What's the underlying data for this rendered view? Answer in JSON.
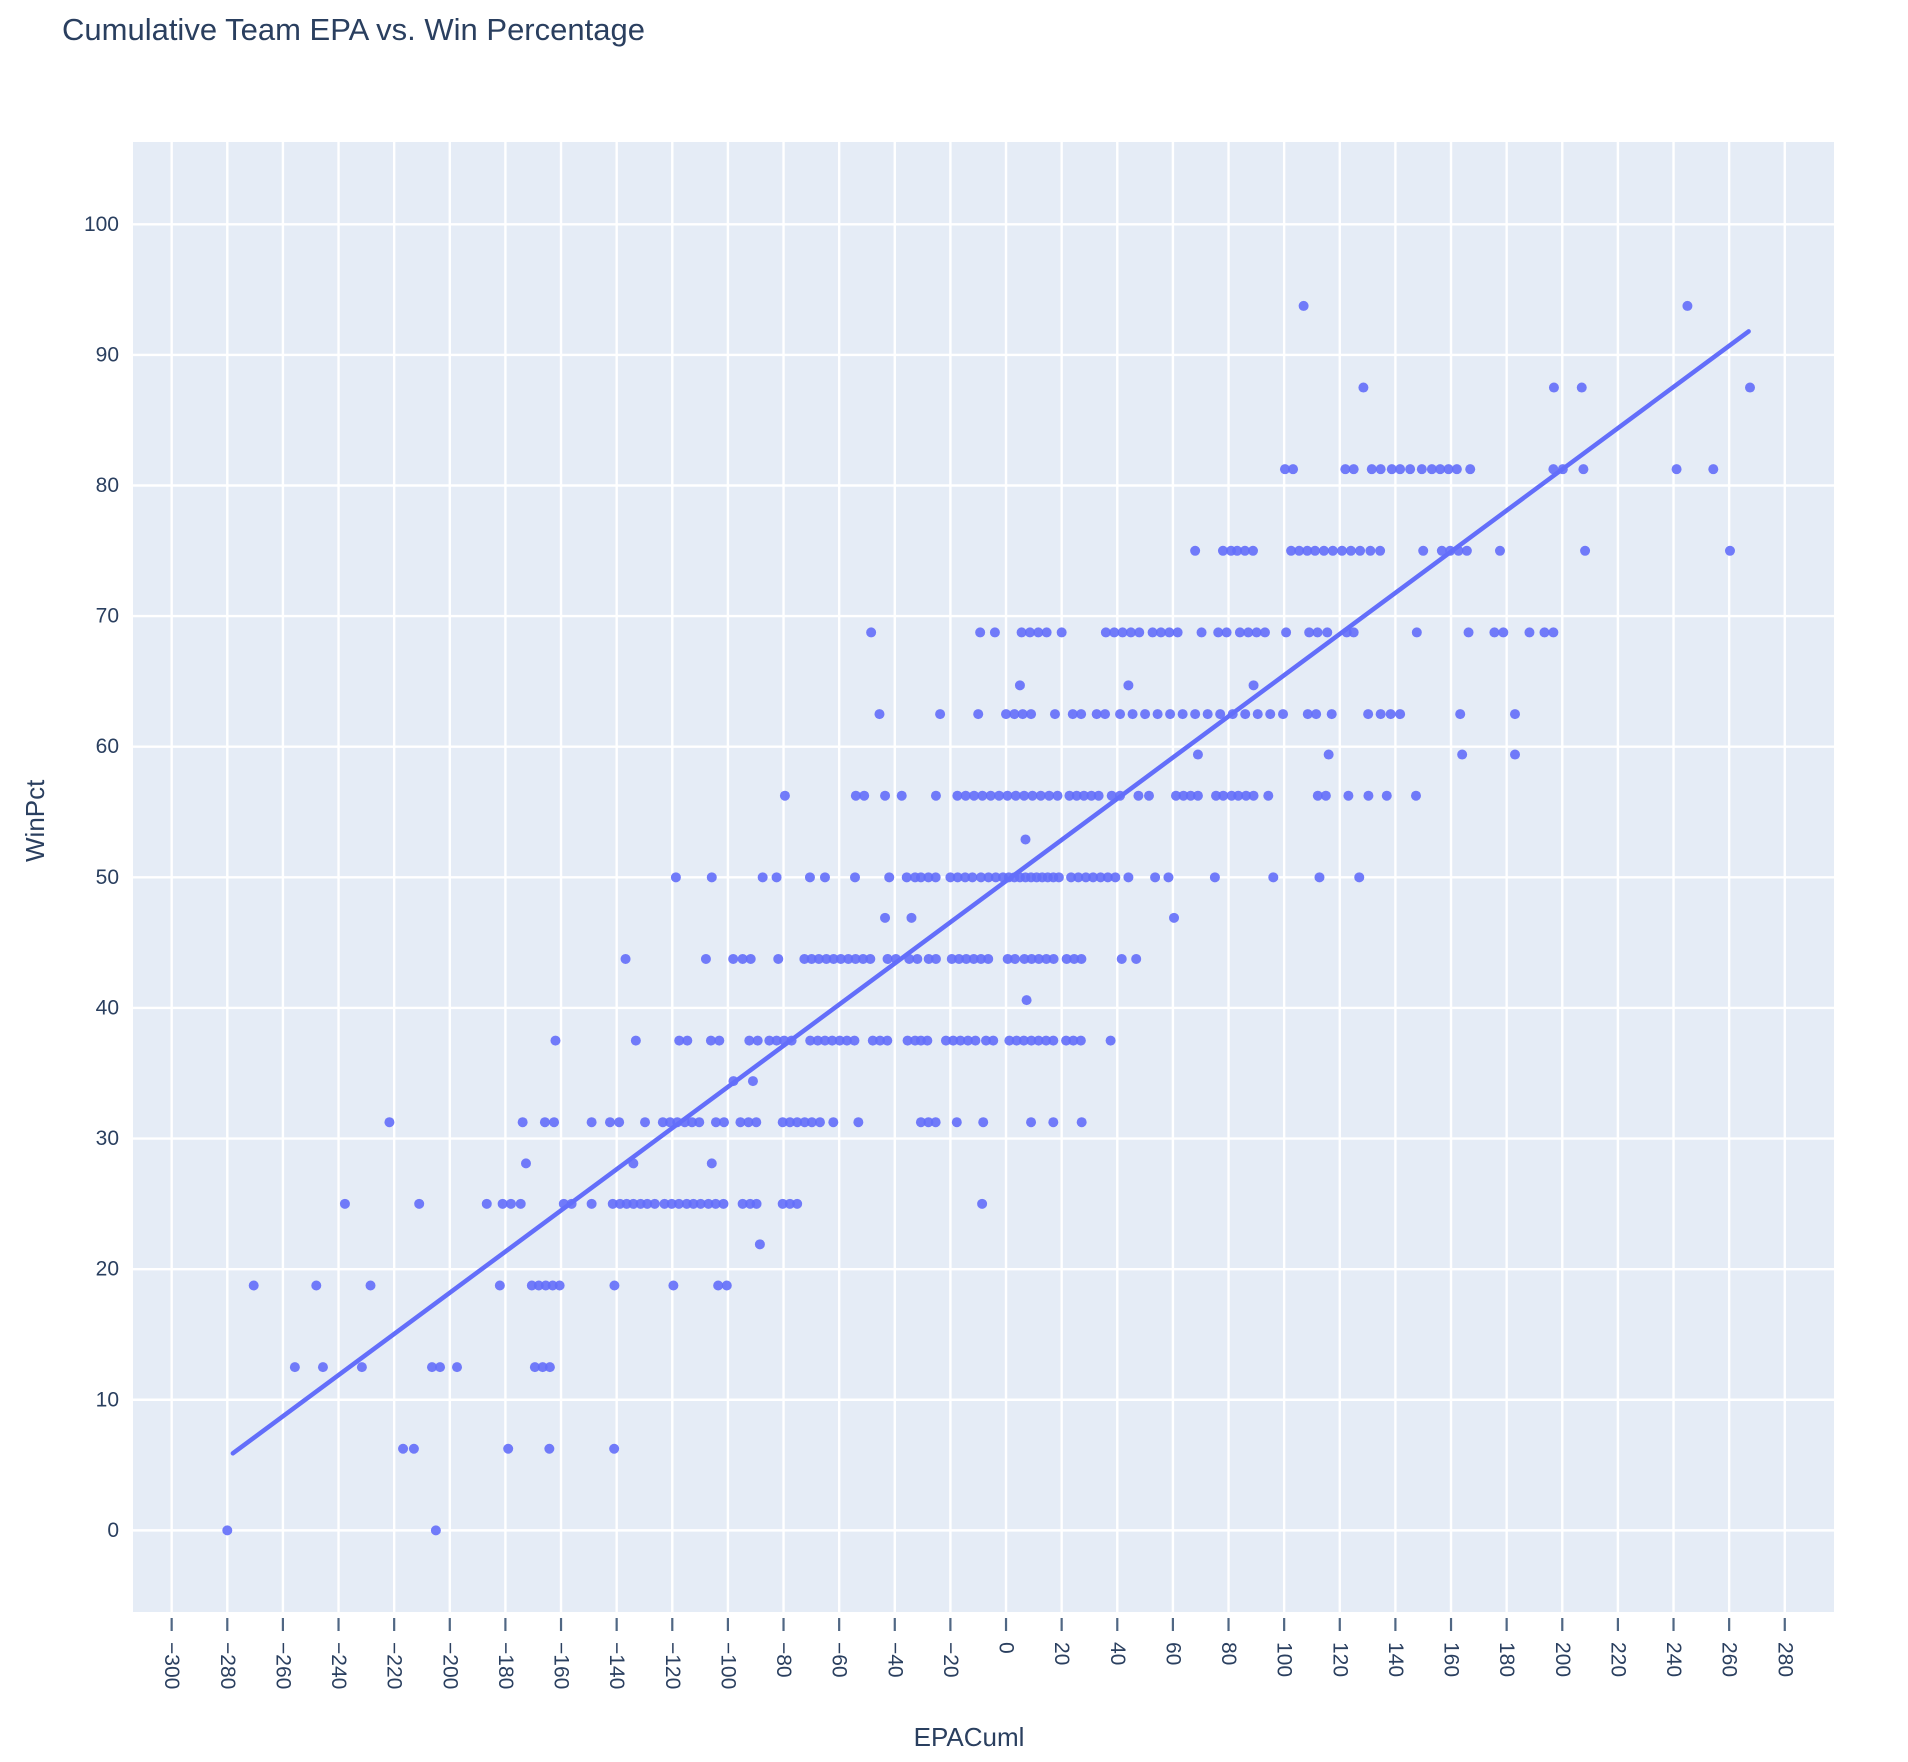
{
  "page": {
    "title": "Cumulative Team EPA vs. Win Percentage"
  },
  "chart_data": {
    "type": "scatter",
    "title": "Cumulative Team EPA vs. Win Percentage",
    "xlabel": "EPACuml",
    "ylabel": "WinPct",
    "xlim": [
      -313.9,
      297.7
    ],
    "ylim": [
      -6.25,
      106.3
    ],
    "x_ticks": [
      -300,
      -280,
      -260,
      -240,
      -220,
      -200,
      -180,
      -160,
      -140,
      -120,
      -100,
      -80,
      -60,
      -40,
      -20,
      0,
      20,
      40,
      60,
      80,
      100,
      120,
      140,
      160,
      180,
      200,
      220,
      240,
      260,
      280
    ],
    "y_ticks": [
      0,
      10,
      20,
      30,
      40,
      50,
      60,
      70,
      80,
      90,
      100
    ],
    "grid": true,
    "legend_position": "none",
    "marker_color": "#636EFA",
    "trend_color": "#636EFA",
    "plot_bg": "#E5ECF6",
    "grid_color": "#FFFFFF",
    "text_color": "#2A3F5F",
    "trendline": {
      "type": "ols",
      "x": [
        -278,
        267
      ],
      "y": [
        5.9,
        91.8
      ]
    },
    "points": [
      [
        -280,
        0
      ],
      [
        -205,
        0
      ],
      [
        -216.8,
        6.25
      ],
      [
        -212.9,
        6.25
      ],
      [
        -179,
        6.25
      ],
      [
        -164.2,
        6.25
      ],
      [
        -140.9,
        6.25
      ],
      [
        -255.7,
        12.5
      ],
      [
        -245.6,
        12.5
      ],
      [
        -231.6,
        12.5
      ],
      [
        -206.4,
        12.5
      ],
      [
        -203.5,
        12.5
      ],
      [
        -197.4,
        12.5
      ],
      [
        -169.4,
        12.5
      ],
      [
        -166.6,
        12.5
      ],
      [
        -164,
        12.5
      ],
      [
        -270.5,
        18.75
      ],
      [
        -248,
        18.75
      ],
      [
        -228.5,
        18.75
      ],
      [
        -182,
        18.75
      ],
      [
        -170.5,
        18.75
      ],
      [
        -168,
        18.75
      ],
      [
        -165.5,
        18.75
      ],
      [
        -163,
        18.75
      ],
      [
        -160.5,
        18.75
      ],
      [
        -140.8,
        18.75
      ],
      [
        -119.6,
        18.75
      ],
      [
        -103.5,
        18.75
      ],
      [
        -100.4,
        18.75
      ],
      [
        -88.5,
        21.9
      ],
      [
        -237.7,
        25
      ],
      [
        -211,
        25
      ],
      [
        -186.7,
        25
      ],
      [
        -181,
        25
      ],
      [
        -178,
        25
      ],
      [
        -174.5,
        25
      ],
      [
        -159,
        25
      ],
      [
        -156.2,
        25
      ],
      [
        -149,
        25
      ],
      [
        -141.4,
        25
      ],
      [
        -138.8,
        25
      ],
      [
        -136.4,
        25
      ],
      [
        -134,
        25
      ],
      [
        -131.4,
        25
      ],
      [
        -129,
        25
      ],
      [
        -126.3,
        25
      ],
      [
        -122.8,
        25
      ],
      [
        -120.2,
        25
      ],
      [
        -117.6,
        25
      ],
      [
        -114.8,
        25
      ],
      [
        -112.4,
        25
      ],
      [
        -109.8,
        25
      ],
      [
        -107,
        25
      ],
      [
        -104.4,
        25
      ],
      [
        -101.6,
        25
      ],
      [
        -94.7,
        25
      ],
      [
        -92,
        25
      ],
      [
        -89.7,
        25
      ],
      [
        -80.3,
        25
      ],
      [
        -77.7,
        25
      ],
      [
        -75.1,
        25
      ],
      [
        -8.6,
        25
      ],
      [
        -172.6,
        28.1
      ],
      [
        -134,
        28.1
      ],
      [
        -105.8,
        28.1
      ],
      [
        -221.7,
        31.25
      ],
      [
        -173.8,
        31.25
      ],
      [
        -165.8,
        31.25
      ],
      [
        -162.5,
        31.25
      ],
      [
        -149,
        31.25
      ],
      [
        -142.4,
        31.25
      ],
      [
        -139.1,
        31.25
      ],
      [
        -129.8,
        31.25
      ],
      [
        -123.4,
        31.25
      ],
      [
        -120.8,
        31.25
      ],
      [
        -118.2,
        31.25
      ],
      [
        -115.5,
        31.25
      ],
      [
        -112.9,
        31.25
      ],
      [
        -110.3,
        31.25
      ],
      [
        -104.3,
        31.25
      ],
      [
        -101.4,
        31.25
      ],
      [
        -95.5,
        31.25
      ],
      [
        -92.6,
        31.25
      ],
      [
        -89.8,
        31.25
      ],
      [
        -80.3,
        31.25
      ],
      [
        -77.7,
        31.25
      ],
      [
        -75.1,
        31.25
      ],
      [
        -72.4,
        31.25
      ],
      [
        -69.8,
        31.25
      ],
      [
        -66.9,
        31.25
      ],
      [
        -62.1,
        31.25
      ],
      [
        -53.1,
        31.25
      ],
      [
        -30.6,
        31.25
      ],
      [
        -27.9,
        31.25
      ],
      [
        -25.3,
        31.25
      ],
      [
        -17.7,
        31.25
      ],
      [
        -8.2,
        31.25
      ],
      [
        9,
        31.25
      ],
      [
        17,
        31.25
      ],
      [
        27.2,
        31.25
      ],
      [
        -98,
        34.4
      ],
      [
        -91,
        34.4
      ],
      [
        -162,
        37.5
      ],
      [
        -133.1,
        37.5
      ],
      [
        -117.5,
        37.5
      ],
      [
        -114.6,
        37.5
      ],
      [
        -106.1,
        37.5
      ],
      [
        -103.1,
        37.5
      ],
      [
        -92.3,
        37.5
      ],
      [
        -89.3,
        37.5
      ],
      [
        -85.1,
        37.5
      ],
      [
        -82.5,
        37.5
      ],
      [
        -79.8,
        37.5
      ],
      [
        -77.1,
        37.5
      ],
      [
        -70.4,
        37.5
      ],
      [
        -67.7,
        37.5
      ],
      [
        -65.1,
        37.5
      ],
      [
        -62.5,
        37.5
      ],
      [
        -59.8,
        37.5
      ],
      [
        -57.2,
        37.5
      ],
      [
        -54.5,
        37.5
      ],
      [
        -47.9,
        37.5
      ],
      [
        -45.3,
        37.5
      ],
      [
        -42.7,
        37.5
      ],
      [
        -35.4,
        37.5
      ],
      [
        -32.7,
        37.5
      ],
      [
        -30.6,
        37.5
      ],
      [
        -28.3,
        37.5
      ],
      [
        -21.6,
        37.5
      ],
      [
        -19,
        37.5
      ],
      [
        -16.4,
        37.5
      ],
      [
        -13.7,
        37.5
      ],
      [
        -11,
        37.5
      ],
      [
        -7.2,
        37.5
      ],
      [
        -4.6,
        37.5
      ],
      [
        1.2,
        37.5
      ],
      [
        3.8,
        37.5
      ],
      [
        6.4,
        37.5
      ],
      [
        9.1,
        37.5
      ],
      [
        11.7,
        37.5
      ],
      [
        14.4,
        37.5
      ],
      [
        17,
        37.5
      ],
      [
        21.6,
        37.5
      ],
      [
        24.2,
        37.5
      ],
      [
        26.9,
        37.5
      ],
      [
        37.6,
        37.5
      ],
      [
        7.4,
        40.6
      ],
      [
        -136.8,
        43.75
      ],
      [
        -107.9,
        43.75
      ],
      [
        -98.1,
        43.75
      ],
      [
        -94.7,
        43.75
      ],
      [
        -91.8,
        43.75
      ],
      [
        -81.9,
        43.75
      ],
      [
        -72.5,
        43.75
      ],
      [
        -69.9,
        43.75
      ],
      [
        -67.3,
        43.75
      ],
      [
        -64.6,
        43.75
      ],
      [
        -62,
        43.75
      ],
      [
        -59.4,
        43.75
      ],
      [
        -56.7,
        43.75
      ],
      [
        -54.1,
        43.75
      ],
      [
        -51.4,
        43.75
      ],
      [
        -48.8,
        43.75
      ],
      [
        -42.6,
        43.75
      ],
      [
        -39.6,
        43.75
      ],
      [
        -34.8,
        43.75
      ],
      [
        -31.9,
        43.75
      ],
      [
        -27.8,
        43.75
      ],
      [
        -25.2,
        43.75
      ],
      [
        -19.5,
        43.75
      ],
      [
        -16.9,
        43.75
      ],
      [
        -14.3,
        43.75
      ],
      [
        -11.6,
        43.75
      ],
      [
        -9,
        43.75
      ],
      [
        -6.4,
        43.75
      ],
      [
        0.6,
        43.75
      ],
      [
        3.2,
        43.75
      ],
      [
        6.6,
        43.75
      ],
      [
        9.2,
        43.75
      ],
      [
        11.8,
        43.75
      ],
      [
        14.5,
        43.75
      ],
      [
        17.1,
        43.75
      ],
      [
        21.8,
        43.75
      ],
      [
        24.5,
        43.75
      ],
      [
        27.1,
        43.75
      ],
      [
        41.6,
        43.75
      ],
      [
        46.8,
        43.75
      ],
      [
        -43.5,
        46.9
      ],
      [
        -34,
        46.9
      ],
      [
        60.4,
        46.9
      ],
      [
        -118.7,
        50
      ],
      [
        -105.8,
        50
      ],
      [
        -87.5,
        50
      ],
      [
        -82.5,
        50
      ],
      [
        -70.5,
        50
      ],
      [
        -65.1,
        50
      ],
      [
        -54.3,
        50
      ],
      [
        -42,
        50
      ],
      [
        -35.7,
        50
      ],
      [
        -32.7,
        50
      ],
      [
        -30.6,
        50
      ],
      [
        -27.9,
        50
      ],
      [
        -25.3,
        50
      ],
      [
        -20,
        50
      ],
      [
        -17.4,
        50
      ],
      [
        -14.7,
        50
      ],
      [
        -12.1,
        50
      ],
      [
        -9,
        50
      ],
      [
        -6.3,
        50
      ],
      [
        -3.7,
        50
      ],
      [
        -1.1,
        50
      ],
      [
        1,
        50
      ],
      [
        3,
        50
      ],
      [
        5,
        50
      ],
      [
        7,
        50
      ],
      [
        9,
        50
      ],
      [
        11,
        50
      ],
      [
        13,
        50
      ],
      [
        15,
        50
      ],
      [
        17,
        50
      ],
      [
        19,
        50
      ],
      [
        23.4,
        50
      ],
      [
        26,
        50
      ],
      [
        28.7,
        50
      ],
      [
        31.3,
        50
      ],
      [
        34,
        50
      ],
      [
        36.6,
        50
      ],
      [
        39.3,
        50
      ],
      [
        44,
        50
      ],
      [
        53.6,
        50
      ],
      [
        58.4,
        50
      ],
      [
        75.1,
        50
      ],
      [
        96.1,
        50
      ],
      [
        112.7,
        50
      ],
      [
        127,
        50
      ],
      [
        7,
        52.9
      ],
      [
        -79.5,
        56.25
      ],
      [
        -54,
        56.25
      ],
      [
        -51,
        56.25
      ],
      [
        -43.5,
        56.25
      ],
      [
        -37.5,
        56.25
      ],
      [
        -25.2,
        56.25
      ],
      [
        -17.5,
        56.25
      ],
      [
        -14.5,
        56.25
      ],
      [
        -11.5,
        56.25
      ],
      [
        -8.5,
        56.25
      ],
      [
        -5.5,
        56.25
      ],
      [
        -2.5,
        56.25
      ],
      [
        0.5,
        56.25
      ],
      [
        3.5,
        56.25
      ],
      [
        6.5,
        56.25
      ],
      [
        9.5,
        56.25
      ],
      [
        12.5,
        56.25
      ],
      [
        15.5,
        56.25
      ],
      [
        18.5,
        56.25
      ],
      [
        22.8,
        56.25
      ],
      [
        25.4,
        56.25
      ],
      [
        28,
        56.25
      ],
      [
        30.7,
        56.25
      ],
      [
        33.3,
        56.25
      ],
      [
        38,
        56.25
      ],
      [
        41,
        56.25
      ],
      [
        47.6,
        56.25
      ],
      [
        51.4,
        56.25
      ],
      [
        61.1,
        56.25
      ],
      [
        63.8,
        56.25
      ],
      [
        66.4,
        56.25
      ],
      [
        69,
        56.25
      ],
      [
        75.5,
        56.25
      ],
      [
        78.1,
        56.25
      ],
      [
        81.1,
        56.25
      ],
      [
        83.5,
        56.25
      ],
      [
        86.3,
        56.25
      ],
      [
        89,
        56.25
      ],
      [
        94.3,
        56.25
      ],
      [
        112.1,
        56.25
      ],
      [
        115,
        56.25
      ],
      [
        123.1,
        56.25
      ],
      [
        130.3,
        56.25
      ],
      [
        136.9,
        56.25
      ],
      [
        147.4,
        56.25
      ],
      [
        69,
        59.4
      ],
      [
        116,
        59.4
      ],
      [
        164,
        59.4
      ],
      [
        183,
        59.4
      ],
      [
        -45.5,
        62.5
      ],
      [
        -23.7,
        62.5
      ],
      [
        -10,
        62.5
      ],
      [
        0,
        62.5
      ],
      [
        3,
        62.5
      ],
      [
        6,
        62.5
      ],
      [
        9,
        62.5
      ],
      [
        17.6,
        62.5
      ],
      [
        24,
        62.5
      ],
      [
        27,
        62.5
      ],
      [
        32.6,
        62.5
      ],
      [
        35.6,
        62.5
      ],
      [
        41,
        62.5
      ],
      [
        45.5,
        62.5
      ],
      [
        50,
        62.5
      ],
      [
        54.5,
        62.5
      ],
      [
        59,
        62.5
      ],
      [
        63.5,
        62.5
      ],
      [
        68,
        62.5
      ],
      [
        72.5,
        62.5
      ],
      [
        77,
        62.5
      ],
      [
        81.5,
        62.5
      ],
      [
        86,
        62.5
      ],
      [
        90.5,
        62.5
      ],
      [
        95,
        62.5
      ],
      [
        99.6,
        62.5
      ],
      [
        108.5,
        62.5
      ],
      [
        111.5,
        62.5
      ],
      [
        117.1,
        62.5
      ],
      [
        130.2,
        62.5
      ],
      [
        134.7,
        62.5
      ],
      [
        138.3,
        62.5
      ],
      [
        141.7,
        62.5
      ],
      [
        163.3,
        62.5
      ],
      [
        183,
        62.5
      ],
      [
        5,
        64.7
      ],
      [
        44,
        64.7
      ],
      [
        89,
        64.7
      ],
      [
        -48.5,
        68.75
      ],
      [
        -9.3,
        68.75
      ],
      [
        -4,
        68.75
      ],
      [
        5.6,
        68.75
      ],
      [
        8.6,
        68.75
      ],
      [
        11.6,
        68.75
      ],
      [
        14.6,
        68.75
      ],
      [
        20,
        68.75
      ],
      [
        35.9,
        68.75
      ],
      [
        38.9,
        68.75
      ],
      [
        41.9,
        68.75
      ],
      [
        44.9,
        68.75
      ],
      [
        47.9,
        68.75
      ],
      [
        52.7,
        68.75
      ],
      [
        55.7,
        68.75
      ],
      [
        58.7,
        68.75
      ],
      [
        61.7,
        68.75
      ],
      [
        70.3,
        68.75
      ],
      [
        76.3,
        68.75
      ],
      [
        79.3,
        68.75
      ],
      [
        84.1,
        68.75
      ],
      [
        87.1,
        68.75
      ],
      [
        90.1,
        68.75
      ],
      [
        93.1,
        68.75
      ],
      [
        100.7,
        68.75
      ],
      [
        109,
        68.75
      ],
      [
        112,
        68.75
      ],
      [
        115.5,
        68.75
      ],
      [
        122.5,
        68.75
      ],
      [
        125,
        68.75
      ],
      [
        147.7,
        68.75
      ],
      [
        166.3,
        68.75
      ],
      [
        175.6,
        68.75
      ],
      [
        178.8,
        68.75
      ],
      [
        188.2,
        68.75
      ],
      [
        193.6,
        68.75
      ],
      [
        196.8,
        68.75
      ],
      [
        68,
        75
      ],
      [
        78,
        75
      ],
      [
        80.9,
        75
      ],
      [
        83.1,
        75
      ],
      [
        85.9,
        75
      ],
      [
        88.8,
        75
      ],
      [
        102.5,
        75
      ],
      [
        105.4,
        75
      ],
      [
        108.3,
        75
      ],
      [
        111.1,
        75
      ],
      [
        114.3,
        75
      ],
      [
        117.5,
        75
      ],
      [
        120.8,
        75
      ],
      [
        124,
        75
      ],
      [
        127.3,
        75
      ],
      [
        131,
        75
      ],
      [
        134.5,
        75
      ],
      [
        150,
        75
      ],
      [
        156.7,
        75
      ],
      [
        159.7,
        75
      ],
      [
        162.7,
        75
      ],
      [
        165.7,
        75
      ],
      [
        177.6,
        75
      ],
      [
        208.2,
        75
      ],
      [
        260.3,
        75
      ],
      [
        100.3,
        81.25
      ],
      [
        103.2,
        81.25
      ],
      [
        122,
        81.25
      ],
      [
        125,
        81.25
      ],
      [
        131.5,
        81.25
      ],
      [
        134.7,
        81.25
      ],
      [
        138.7,
        81.25
      ],
      [
        141.7,
        81.25
      ],
      [
        145.3,
        81.25
      ],
      [
        149.5,
        81.25
      ],
      [
        153.1,
        81.25
      ],
      [
        156.1,
        81.25
      ],
      [
        159.1,
        81.25
      ],
      [
        162.1,
        81.25
      ],
      [
        166.9,
        81.25
      ],
      [
        196.8,
        81.25
      ],
      [
        200.2,
        81.25
      ],
      [
        207.6,
        81.25
      ],
      [
        241.1,
        81.25
      ],
      [
        254.3,
        81.25
      ],
      [
        128.5,
        87.5
      ],
      [
        197,
        87.5
      ],
      [
        207,
        87.5
      ],
      [
        267.5,
        87.5
      ],
      [
        107,
        93.75
      ],
      [
        245,
        93.75
      ]
    ]
  }
}
